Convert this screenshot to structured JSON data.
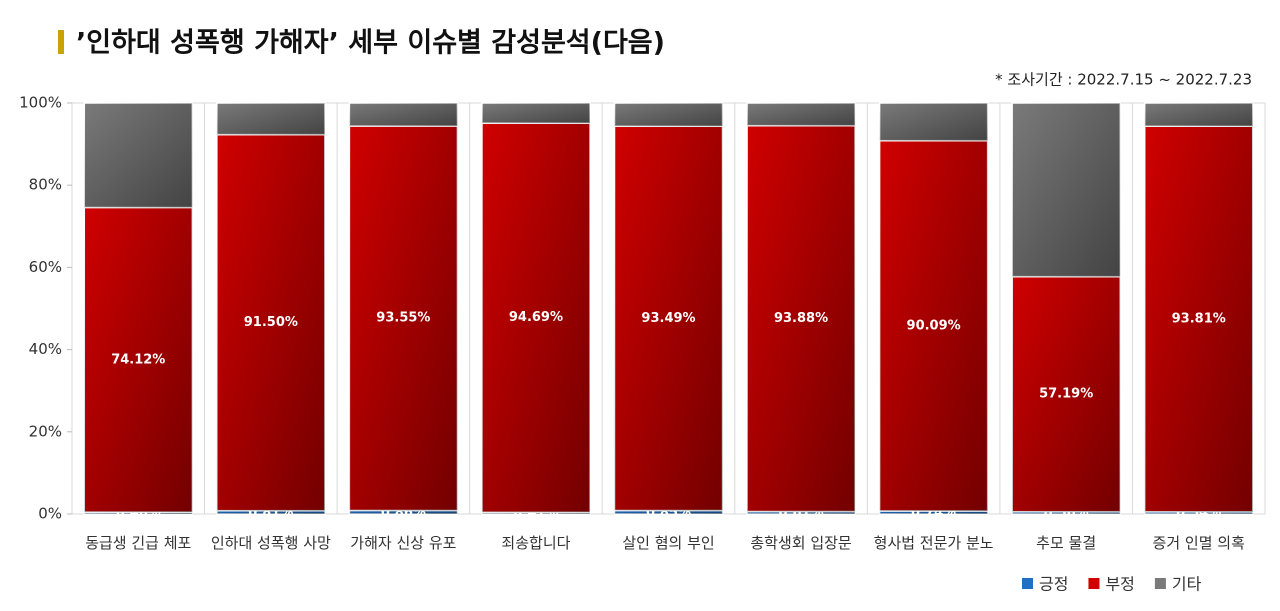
{
  "chart_data": {
    "type": "stacked_bar",
    "title": "’인하대 성폭행 가해자’ 세부 이슈별 감성분석(다음)",
    "subtitle": "* 조사기간 : 2022.7.15 ~ 2022.7.23",
    "categories": [
      "동급생 긴급 체포",
      "인하대 성폭행 사망",
      "가해자 신상 유포",
      "죄송합니다",
      "살인 혐의 부인",
      "총학생회 입장문",
      "형사법 전문가 분노",
      "추모 물결",
      "증거 인멸 의혹"
    ],
    "series": [
      {
        "name": "긍정",
        "color": "#1f6fc5",
        "values": [
          0.46,
          0.81,
          0.86,
          0.41,
          0.85,
          0.61,
          0.74,
          0.56,
          0.54
        ],
        "value_labels": [
          "0.46%",
          "0.81%",
          "0.86%",
          "0.41%",
          "0.85%",
          "0.61%",
          "0.74%",
          "0.56%",
          "0.54%"
        ]
      },
      {
        "name": "부정",
        "color": "#d00000",
        "values": [
          74.12,
          91.5,
          93.55,
          94.69,
          93.49,
          93.88,
          90.09,
          57.19,
          93.81
        ],
        "value_labels": [
          "74.12%",
          "91.50%",
          "93.55%",
          "94.69%",
          "93.49%",
          "93.88%",
          "90.09%",
          "57.19%",
          "93.81%"
        ]
      },
      {
        "name": "기타",
        "color": "#7a7a7a",
        "values": [
          25.42,
          7.69,
          5.59,
          4.9,
          5.66,
          5.51,
          9.17,
          42.25,
          5.65
        ]
      }
    ],
    "ylim": [
      0,
      100
    ],
    "yticks": [
      {
        "value": 0,
        "label": "0%"
      },
      {
        "value": 20,
        "label": "20%"
      },
      {
        "value": 40,
        "label": "40%"
      },
      {
        "value": 60,
        "label": "60%"
      },
      {
        "value": 80,
        "label": "80%"
      },
      {
        "value": 100,
        "label": "100%"
      }
    ],
    "legend": "bottom-right"
  }
}
